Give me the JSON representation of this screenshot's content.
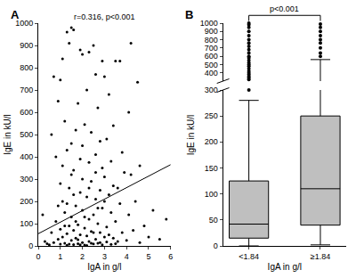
{
  "chart_data": [
    {
      "type": "scatter",
      "panel_label": "A",
      "annotation": "r=0.316, p<0.001",
      "xlabel": "IgA in g/l",
      "ylabel": "IgE in kU/l",
      "xlim": [
        0,
        6
      ],
      "xticks": [
        0,
        1,
        2,
        3,
        4,
        5,
        6
      ],
      "ylim": [
        0,
        1000
      ],
      "yticks": [
        0,
        100,
        200,
        300,
        400,
        500,
        600,
        700,
        800,
        900,
        1000
      ],
      "color": "#000000",
      "marker": "circle",
      "x": [
        1.3,
        1.5,
        1.6,
        1.4,
        1.9,
        2.0,
        2.3,
        1.1,
        2.9,
        3.5,
        3.7,
        4.2,
        4.1,
        2.5,
        2.6,
        0.7,
        1.0,
        4.5,
        3.0,
        2.2,
        3.2,
        1.8,
        0.9,
        2.7,
        1.2,
        2.1,
        3.4,
        1.7,
        2.4,
        0.6,
        3.1,
        2.8,
        1.5,
        2.0,
        1.3,
        3.8,
        2.6,
        0.8,
        1.9,
        3.3,
        2.3,
        1.1,
        4.6,
        2.9,
        1.6,
        0.2,
        0.3,
        0.5,
        0.6,
        0.7,
        0.8,
        0.9,
        1.0,
        1.0,
        1.1,
        1.1,
        1.2,
        1.2,
        1.3,
        1.3,
        1.4,
        1.4,
        1.5,
        1.5,
        1.6,
        1.6,
        1.7,
        1.7,
        1.8,
        1.8,
        1.9,
        1.9,
        2.0,
        2.0,
        2.1,
        2.1,
        2.2,
        2.2,
        2.3,
        2.3,
        2.4,
        2.4,
        2.5,
        2.5,
        2.6,
        2.6,
        2.7,
        2.7,
        2.8,
        2.8,
        2.9,
        2.9,
        3.0,
        3.0,
        3.1,
        3.1,
        3.2,
        3.2,
        3.3,
        3.3,
        3.4,
        3.4,
        3.5,
        3.6,
        3.7,
        3.8,
        3.9,
        4.0,
        4.1,
        4.3,
        4.4,
        4.6,
        4.8,
        5.0,
        5.2,
        5.5,
        5.8,
        2.4,
        1.8,
        1.2,
        0.9,
        2.0,
        1.6,
        2.6,
        3.0,
        1.4,
        2.2,
        1.0,
        2.8,
        3.6,
        1.7,
        2.5,
        1.9,
        2.1,
        1.3,
        0.4,
        4.2,
        3.5,
        2.7,
        1.5,
        2.3
      ],
      "values": [
        960,
        980,
        970,
        910,
        880,
        860,
        870,
        840,
        830,
        830,
        830,
        910,
        600,
        900,
        770,
        760,
        745,
        735,
        760,
        700,
        680,
        640,
        650,
        620,
        560,
        545,
        540,
        520,
        510,
        500,
        480,
        470,
        460,
        450,
        430,
        420,
        410,
        400,
        390,
        380,
        375,
        360,
        360,
        350,
        340,
        140,
        20,
        5,
        60,
        15,
        110,
        30,
        8,
        75,
        200,
        40,
        12,
        150,
        55,
        3,
        90,
        260,
        25,
        130,
        6,
        70,
        180,
        35,
        10,
        95,
        240,
        50,
        15,
        160,
        80,
        4,
        220,
        45,
        120,
        20,
        290,
        65,
        9,
        140,
        30,
        210,
        100,
        12,
        250,
        60,
        5,
        170,
        40,
        310,
        85,
        18,
        230,
        50,
        7,
        150,
        270,
        35,
        110,
        20,
        190,
        60,
        330,
        25,
        140,
        70,
        200,
        15,
        90,
        40,
        160,
        30,
        120,
        12,
        28,
        90,
        180,
        300,
        230,
        330,
        200,
        8,
        2,
        280,
        15,
        260,
        110,
        60,
        5,
        130,
        190,
        10,
        320,
        10,
        170,
        320,
        260
      ],
      "fit": {
        "x": [
          0,
          6
        ],
        "values": [
          55,
          365
        ]
      }
    },
    {
      "type": "box",
      "panel_label": "B",
      "annotation": "p<0.001",
      "xlabel": "IgA in g/l",
      "ylabel": "IgE in kU/l",
      "categories": [
        "<1.84",
        "≥1.84"
      ],
      "ylim": [
        0,
        1000
      ],
      "y_break": 300,
      "yticks": [
        0,
        50,
        100,
        150,
        200,
        250,
        300,
        400,
        500,
        600,
        700,
        800,
        900,
        1000
      ],
      "color": "#bfbfbf",
      "boxes": [
        {
          "q1": 15,
          "median": 42,
          "q3": 125,
          "lowerfence": 0,
          "upperfence": 280,
          "outliers": [
            300,
            320,
            340,
            360,
            380,
            400,
            420,
            450,
            480,
            500,
            520,
            550,
            580,
            600,
            640,
            680,
            720,
            760,
            800,
            850,
            900,
            950,
            980,
            1000
          ]
        },
        {
          "q1": 40,
          "median": 110,
          "q3": 250,
          "lowerfence": 2,
          "upperfence": 560,
          "outliers": [
            600,
            640,
            700,
            760,
            800,
            850,
            900,
            950,
            990
          ]
        }
      ]
    }
  ]
}
